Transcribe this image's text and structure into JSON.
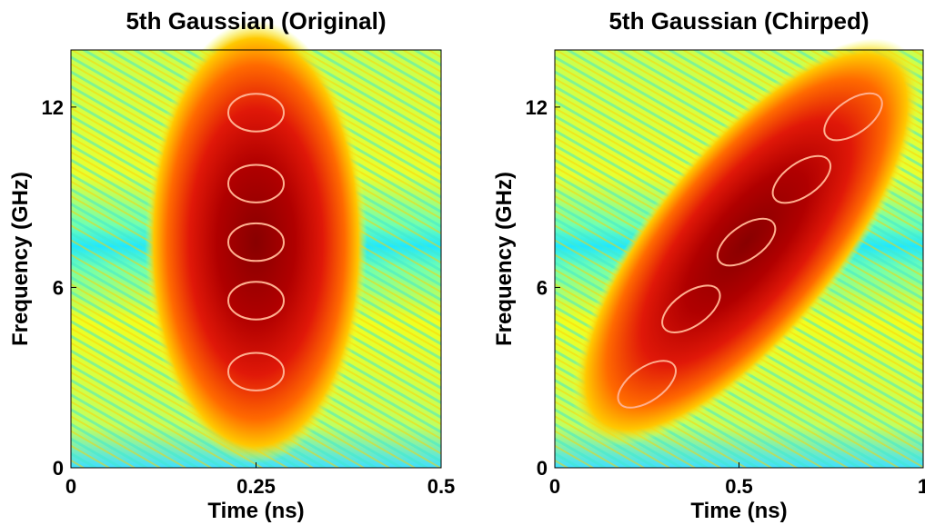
{
  "chart_data": [
    {
      "type": "heatmap",
      "title": "5th Gaussian (Original)",
      "xlabel": "Time (ns)",
      "ylabel": "Frequency (GHz)",
      "xlim": [
        0,
        0.5
      ],
      "xticks": [
        0,
        0.25,
        0.5
      ],
      "ylim": [
        0,
        13.9
      ],
      "yticks": [
        0,
        6,
        12
      ]
    },
    {
      "type": "heatmap",
      "title": "5th Gaussian (Chirped)",
      "xlabel": "Time (ns)",
      "ylabel": "Frequency (GHz)",
      "xlim": [
        0,
        1
      ],
      "xticks": [
        0,
        0.5,
        1
      ],
      "ylim": [
        0,
        13.9
      ],
      "yticks": [
        0,
        6,
        12
      ]
    }
  ]
}
